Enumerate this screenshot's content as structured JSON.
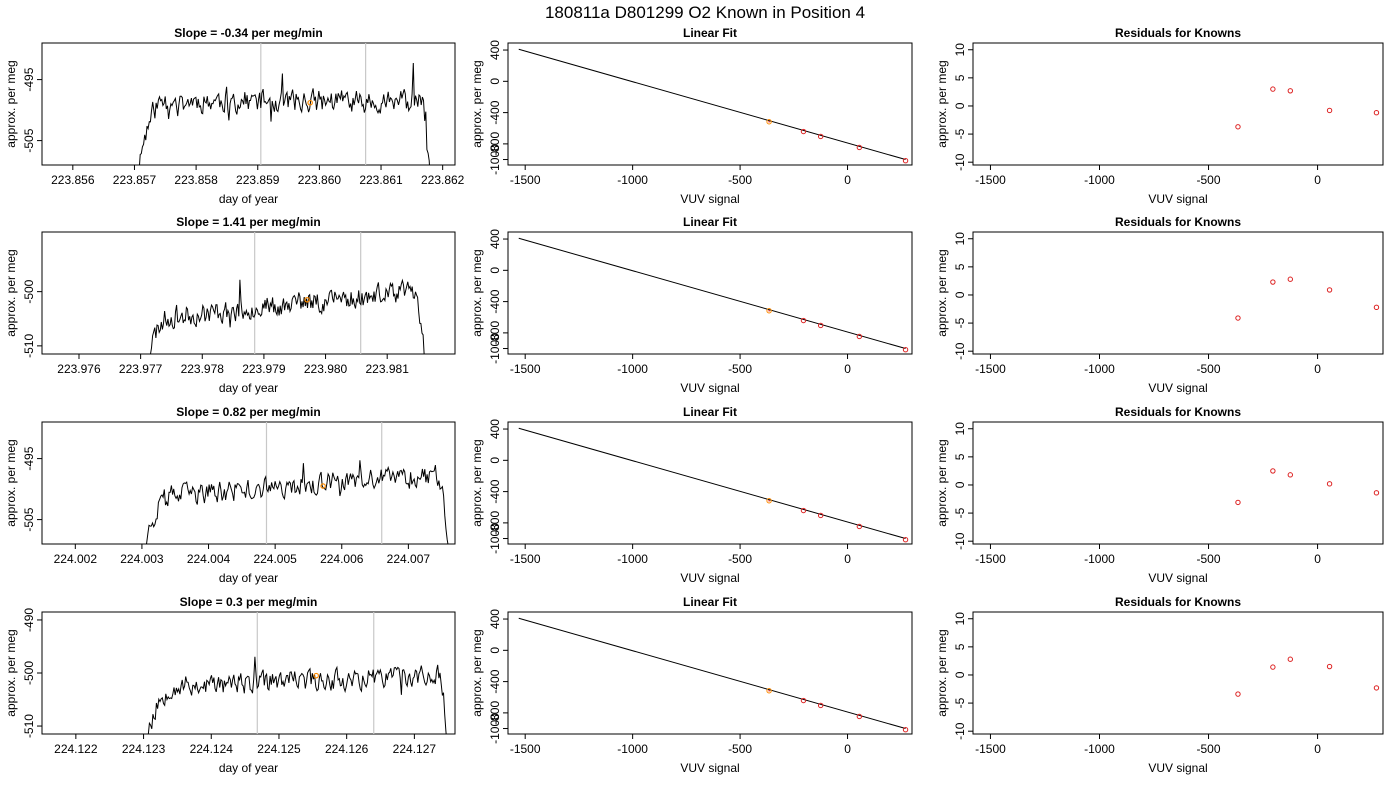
{
  "suptitle": "180811a     D801299   O2 Known in Position  4",
  "colors": {
    "trace": "#000000",
    "vline": "#c8c8c8",
    "fit_point": "#ff8c00",
    "residual_point": "#dd2222",
    "fit_line": "#000000"
  },
  "chart_data": [
    {
      "type": "line",
      "title": "Slope =  -0.34  per meg/min",
      "xlabel": "day of year",
      "ylabel": "approx. per meg",
      "xlim": [
        223.8555,
        223.8622
      ],
      "ylim": [
        -509,
        -489
      ],
      "xticks": [
        "223.856",
        "223.857",
        "223.858",
        "223.859",
        "223.860",
        "223.861",
        "223.862"
      ],
      "yticks": [
        "-505",
        "-495"
      ],
      "vlines": [
        223.85905,
        223.86075
      ],
      "marker": {
        "x": 223.85985,
        "y": -498.8
      },
      "trace": {
        "x_start": 223.857,
        "x_end": 223.8618,
        "level": -498.5,
        "rise": 0.1,
        "rise_depth": 14,
        "fall_depth": 14,
        "noise": 1.7,
        "seed": 11
      }
    },
    {
      "type": "scatter",
      "title": "Linear Fit",
      "xlabel": "VUV signal",
      "ylabel": "approx. per meg",
      "xlim": [
        -1580,
        300
      ],
      "ylim": [
        -1070,
        490
      ],
      "xticks": [
        "-1500",
        "-1000",
        "-500",
        "0"
      ],
      "yticks": [
        "-1000",
        "-800",
        "-400",
        "0",
        "400"
      ],
      "line": {
        "x": [
          -1530,
          270
        ],
        "y": [
          410,
          -1000
        ]
      },
      "points": {
        "x": [
          -365,
          -205,
          -125,
          55,
          270
        ],
        "y": [
          -517,
          -642,
          -705,
          -846,
          -1015
        ]
      },
      "highlight_index": 0
    },
    {
      "type": "scatter",
      "title": "Residuals for Knowns",
      "xlabel": "VUV signal",
      "ylabel": "approx. per meg",
      "xlim": [
        -1580,
        300
      ],
      "ylim": [
        -10.5,
        11.2
      ],
      "xticks": [
        "-1500",
        "-1000",
        "-500",
        "0"
      ],
      "yticks": [
        "-10",
        "-5",
        "0",
        "5",
        "10"
      ],
      "points": {
        "x": [
          -365,
          -205,
          -125,
          55,
          270
        ],
        "y": [
          -3.7,
          3.0,
          2.7,
          -0.8,
          -1.2
        ]
      }
    },
    {
      "type": "line",
      "title": "Slope =  1.41  per meg/min",
      "xlabel": "day of year",
      "ylabel": "approx. per meg",
      "xlim": [
        223.9754,
        223.9821
      ],
      "ylim": [
        -511.5,
        -489
      ],
      "xticks": [
        "223.976",
        "223.977",
        "223.978",
        "223.979",
        "223.980",
        "223.981"
      ],
      "yticks": [
        "-510",
        "-500"
      ],
      "vlines": [
        223.97885,
        223.98057
      ],
      "marker": {
        "x": 223.9797,
        "y": -501.5
      },
      "trace": {
        "x_start": 223.977,
        "x_end": 223.9816,
        "level": -502.5,
        "slope": 5.5,
        "rise": 0.1,
        "rise_depth": 12,
        "fall_depth": 12,
        "noise": 1.8,
        "seed": 23
      }
    },
    {
      "type": "scatter",
      "title": "Linear Fit",
      "xlabel": "VUV signal",
      "ylabel": "approx. per meg",
      "xlim": [
        -1580,
        300
      ],
      "ylim": [
        -1070,
        490
      ],
      "xticks": [
        "-1500",
        "-1000",
        "-500",
        "0"
      ],
      "yticks": [
        "-1000",
        "-800",
        "-400",
        "0",
        "400"
      ],
      "line": {
        "x": [
          -1530,
          270
        ],
        "y": [
          410,
          -1000
        ]
      },
      "points": {
        "x": [
          -365,
          -205,
          -125,
          55,
          270
        ],
        "y": [
          -517,
          -642,
          -705,
          -846,
          -1015
        ]
      },
      "highlight_index": 0
    },
    {
      "type": "scatter",
      "title": "Residuals for Knowns",
      "xlabel": "VUV signal",
      "ylabel": "approx. per meg",
      "xlim": [
        -1580,
        300
      ],
      "ylim": [
        -10.5,
        11.2
      ],
      "xticks": [
        "-1500",
        "-1000",
        "-500",
        "0"
      ],
      "yticks": [
        "-10",
        "-5",
        "0",
        "5",
        "10"
      ],
      "points": {
        "x": [
          -365,
          -205,
          -125,
          55,
          270
        ],
        "y": [
          -4.1,
          2.3,
          2.8,
          0.9,
          -2.2
        ]
      }
    },
    {
      "type": "line",
      "title": "Slope =  0.82  per meg/min",
      "xlabel": "day of year",
      "ylabel": "approx. per meg",
      "xlim": [
        224.0015,
        224.0077
      ],
      "ylim": [
        -509,
        -489
      ],
      "xticks": [
        "224.002",
        "224.003",
        "224.004",
        "224.005",
        "224.006",
        "224.007"
      ],
      "yticks": [
        "-505",
        "-495"
      ],
      "vlines": [
        224.00487,
        224.0066
      ],
      "marker": {
        "x": 224.00572,
        "y": -499.5
      },
      "trace": {
        "x_start": 224.003,
        "x_end": 224.0076,
        "level": -499.5,
        "slope": 4.0,
        "rise": 0.1,
        "rise_depth": 9,
        "fall_depth": 12,
        "noise": 1.6,
        "seed": 37
      }
    },
    {
      "type": "scatter",
      "title": "Linear Fit",
      "xlabel": "VUV signal",
      "ylabel": "approx. per meg",
      "xlim": [
        -1580,
        300
      ],
      "ylim": [
        -1070,
        490
      ],
      "xticks": [
        "-1500",
        "-1000",
        "-500",
        "0"
      ],
      "yticks": [
        "-1000",
        "-800",
        "-400",
        "0",
        "400"
      ],
      "line": {
        "x": [
          -1530,
          270
        ],
        "y": [
          410,
          -1000
        ]
      },
      "points": {
        "x": [
          -365,
          -205,
          -125,
          55,
          270
        ],
        "y": [
          -517,
          -642,
          -705,
          -846,
          -1015
        ]
      },
      "highlight_index": 0
    },
    {
      "type": "scatter",
      "title": "Residuals for Knowns",
      "xlabel": "VUV signal",
      "ylabel": "approx. per meg",
      "xlim": [
        -1580,
        300
      ],
      "ylim": [
        -10.5,
        11.2
      ],
      "xticks": [
        "-1500",
        "-1000",
        "-500",
        "0"
      ],
      "yticks": [
        "-10",
        "-5",
        "0",
        "5",
        "10"
      ],
      "points": {
        "x": [
          -365,
          -205,
          -125,
          55,
          270
        ],
        "y": [
          -3.1,
          2.5,
          1.8,
          0.2,
          -1.4
        ]
      }
    },
    {
      "type": "line",
      "title": "Slope =  0.3  per meg/min",
      "xlabel": "day of year",
      "ylabel": "approx. per meg",
      "xlim": [
        224.1215,
        224.1276
      ],
      "ylim": [
        -511.5,
        -488.5
      ],
      "xticks": [
        "224.122",
        "224.123",
        "224.124",
        "224.125",
        "224.126",
        "224.127"
      ],
      "yticks": [
        "-510",
        "-500",
        "-490"
      ],
      "vlines": [
        224.12468,
        224.1264
      ],
      "marker": {
        "x": 224.12555,
        "y": -500.5
      },
      "trace": {
        "x_start": 224.123,
        "x_end": 224.1275,
        "level": -501.5,
        "slope": 2.5,
        "rise": 0.1,
        "rise_depth": 12,
        "fall_depth": 14,
        "noise": 1.8,
        "seed": 53
      }
    },
    {
      "type": "scatter",
      "title": "Linear Fit",
      "xlabel": "VUV signal",
      "ylabel": "approx. per meg",
      "xlim": [
        -1580,
        300
      ],
      "ylim": [
        -1070,
        490
      ],
      "xticks": [
        "-1500",
        "-1000",
        "-500",
        "0"
      ],
      "yticks": [
        "-1000",
        "-800",
        "-400",
        "0",
        "400"
      ],
      "line": {
        "x": [
          -1530,
          270
        ],
        "y": [
          410,
          -1000
        ]
      },
      "points": {
        "x": [
          -365,
          -205,
          -125,
          55,
          270
        ],
        "y": [
          -517,
          -642,
          -705,
          -846,
          -1015
        ]
      },
      "highlight_index": 0
    },
    {
      "type": "scatter",
      "title": "Residuals for Knowns",
      "xlabel": "VUV signal",
      "ylabel": "approx. per meg",
      "xlim": [
        -1580,
        300
      ],
      "ylim": [
        -10.5,
        11.2
      ],
      "xticks": [
        "-1500",
        "-1000",
        "-500",
        "0"
      ],
      "yticks": [
        "-10",
        "-5",
        "0",
        "5",
        "10"
      ],
      "points": {
        "x": [
          -365,
          -205,
          -125,
          55,
          270
        ],
        "y": [
          -3.4,
          1.4,
          2.8,
          1.5,
          -2.3
        ]
      }
    }
  ]
}
